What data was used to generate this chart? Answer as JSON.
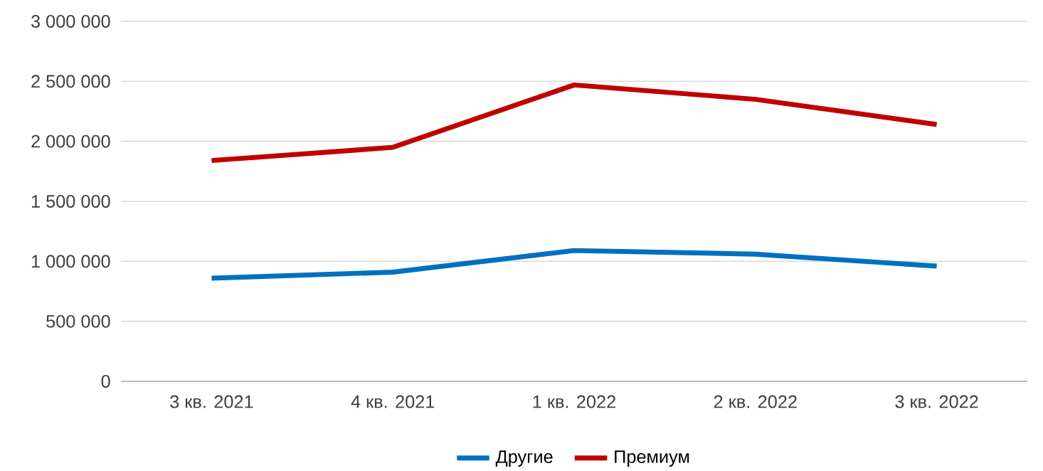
{
  "chart_data": {
    "type": "line",
    "categories": [
      "3 кв. 2021",
      "4 кв. 2021",
      "1 кв. 2022",
      "2 кв. 2022",
      "3 кв. 2022"
    ],
    "series": [
      {
        "name": "Другие",
        "color": "#0070c0",
        "values": [
          860000,
          910000,
          1090000,
          1060000,
          960000
        ]
      },
      {
        "name": "Премиум",
        "color": "#c00000",
        "values": [
          1840000,
          1950000,
          2470000,
          2350000,
          2140000
        ]
      }
    ],
    "ylim": [
      0,
      3000000
    ],
    "yticks": [
      {
        "value": 0,
        "label": "0"
      },
      {
        "value": 500000,
        "label": "500 000"
      },
      {
        "value": 1000000,
        "label": "1 000 000"
      },
      {
        "value": 1500000,
        "label": "1 500 000"
      },
      {
        "value": 2000000,
        "label": "2 000 000"
      },
      {
        "value": 2500000,
        "label": "2 500 000"
      },
      {
        "value": 3000000,
        "label": "3 000 000"
      }
    ],
    "grid": "y",
    "legend": "bottom",
    "marker": "none",
    "line_style": "solid"
  }
}
